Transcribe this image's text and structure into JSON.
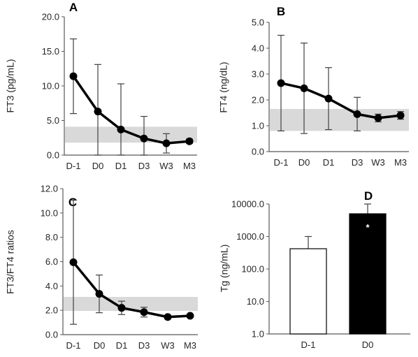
{
  "chart_data": [
    {
      "panel": "A",
      "type": "line",
      "ylabel": "FT3 (pg/mL)",
      "categories": [
        "D-1",
        "D0",
        "D1",
        "D3",
        "W3",
        "M3"
      ],
      "values": [
        11.4,
        6.3,
        3.7,
        2.4,
        1.7,
        2.0
      ],
      "error": [
        5.4,
        6.8,
        6.6,
        3.2,
        1.4,
        0.3
      ],
      "reference_range": [
        1.8,
        4.1
      ],
      "ylim": [
        0,
        20
      ],
      "yticks": [
        "0.0",
        "5.0",
        "10.0",
        "15.0",
        "20.0"
      ],
      "ytick_values": [
        0,
        5,
        10,
        15,
        20
      ]
    },
    {
      "panel": "B",
      "type": "line",
      "ylabel": "FT4 (ng/dL)",
      "categories": [
        "D-1",
        "D0",
        "D1",
        "D3",
        "W3",
        "M3"
      ],
      "values": [
        2.65,
        2.45,
        2.05,
        1.45,
        1.3,
        1.4
      ],
      "error": [
        1.85,
        1.75,
        1.2,
        0.65,
        0.15,
        0.15
      ],
      "reference_range": [
        0.8,
        1.65
      ],
      "ylim": [
        0,
        5
      ],
      "yticks": [
        "0.0",
        "1.0",
        "2.0",
        "3.0",
        "4.0",
        "5.0"
      ],
      "ytick_values": [
        0,
        1,
        2,
        3,
        4,
        5
      ]
    },
    {
      "panel": "C",
      "type": "line",
      "ylabel": "FT3/FT4 ratios",
      "categories": [
        "D-1",
        "D0",
        "D1",
        "D3",
        "W3",
        "M3"
      ],
      "values": [
        5.95,
        3.35,
        2.2,
        1.85,
        1.45,
        1.55
      ],
      "error": [
        5.1,
        1.55,
        0.55,
        0.4,
        0.15,
        0.1
      ],
      "reference_range": [
        1.95,
        3.1
      ],
      "ylim": [
        0,
        12
      ],
      "yticks": [
        "0.0",
        "2.0",
        "4.0",
        "6.0",
        "8.0",
        "10.0",
        "12.0"
      ],
      "ytick_values": [
        0,
        2,
        4,
        6,
        8,
        10,
        12
      ]
    },
    {
      "panel": "D",
      "type": "bar",
      "ylabel": "Tg (ng/mL)",
      "yscale": "log",
      "categories": [
        "D-1",
        "D0"
      ],
      "values": [
        420,
        5000
      ],
      "error_upper": [
        1000,
        10000
      ],
      "bar_colors": [
        "#ffffff",
        "#000000"
      ],
      "annotation": "*",
      "ylim": [
        1,
        10000
      ],
      "yticks": [
        "1.0",
        "10.0",
        "100.0",
        "1000.0",
        "10000.0"
      ],
      "ytick_values": [
        1,
        10,
        100,
        1000,
        10000
      ]
    }
  ]
}
